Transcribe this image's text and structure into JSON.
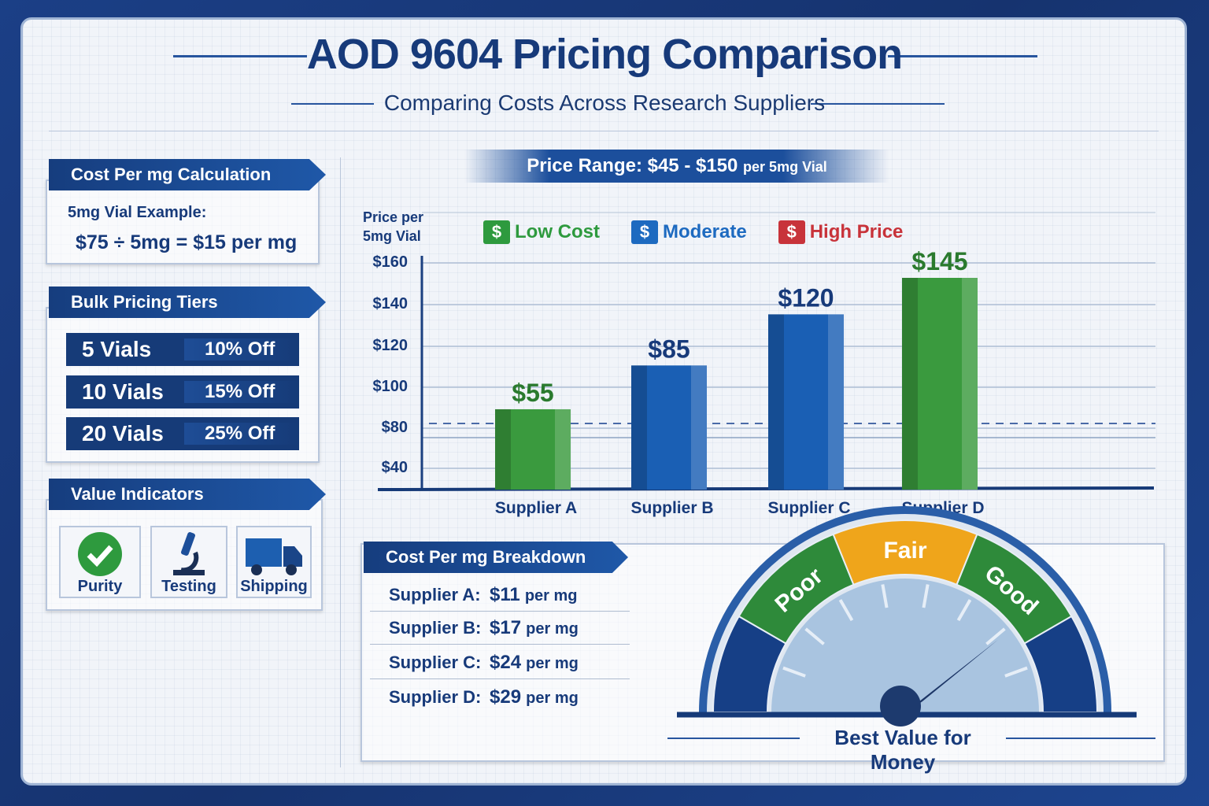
{
  "header": {
    "title": "AOD 9604 Pricing Comparison",
    "subtitle": "Comparing Costs Across Research Suppliers"
  },
  "cost_calc": {
    "heading": "Cost Per mg Calculation",
    "example_label": "5mg Vial Example:",
    "formula": "$75 ÷ 5mg = $15 per mg"
  },
  "bulk": {
    "heading": "Bulk Pricing Tiers",
    "tiers": [
      {
        "vials": "5 Vials",
        "discount": "10% Off"
      },
      {
        "vials": "10 Vials",
        "discount": "15% Off"
      },
      {
        "vials": "20 Vials",
        "discount": "25% Off"
      }
    ]
  },
  "value_indicators": {
    "heading": "Value Indicators",
    "items": [
      {
        "label": "Purity",
        "icon": "check-circle-icon"
      },
      {
        "label": "Testing",
        "icon": "microscope-icon"
      },
      {
        "label": "Shipping",
        "icon": "truck-icon"
      }
    ]
  },
  "price_range": {
    "text": "Price Range: $45 - $150",
    "unit": "per 5mg Vial"
  },
  "chart_data": {
    "type": "bar",
    "ylabel": "Price per 5mg Vial",
    "y_ticks": [
      "$160",
      "$140",
      "$120",
      "$100",
      "$80",
      "$40"
    ],
    "categories": [
      "Supplier A",
      "Supplier B",
      "Supplier C",
      "Supplier D"
    ],
    "values": [
      55,
      85,
      120,
      145
    ],
    "data_labels": [
      "$55",
      "$85",
      "$120",
      "$145"
    ],
    "bar_colors": [
      "#3a9a3e",
      "#1a5fb4",
      "#1a5fb4",
      "#3a9a3e"
    ],
    "label_colors": [
      "#2a7a2e",
      "#173a7a",
      "#173a7a",
      "#2a7a2e"
    ],
    "reference_line": 80,
    "grid": true,
    "legend": [
      {
        "label": "Low Cost",
        "color": "#2e9a3e"
      },
      {
        "label": "Moderate",
        "color": "#1d6ac0"
      },
      {
        "label": "High Price",
        "color": "#c8333a"
      }
    ],
    "legend_placement": "top"
  },
  "breakdown": {
    "heading": "Cost Per mg Breakdown",
    "rows": [
      {
        "supplier": "Supplier A:",
        "value": "$11",
        "unit": "per mg"
      },
      {
        "supplier": "Supplier B:",
        "value": "$17",
        "unit": "per mg"
      },
      {
        "supplier": "Supplier C:",
        "value": "$24",
        "unit": "per mg"
      },
      {
        "supplier": "Supplier D:",
        "value": "$29",
        "unit": "per mg"
      }
    ]
  },
  "gauge": {
    "segments": [
      "Poor",
      "Fair",
      "Good"
    ],
    "caption": "Best Value for Money",
    "needle_value": "Good",
    "colors": {
      "poor": "#2e8a3a",
      "fair": "#efa51b",
      "good": "#2e8a3a",
      "ends": "#163f86"
    }
  }
}
